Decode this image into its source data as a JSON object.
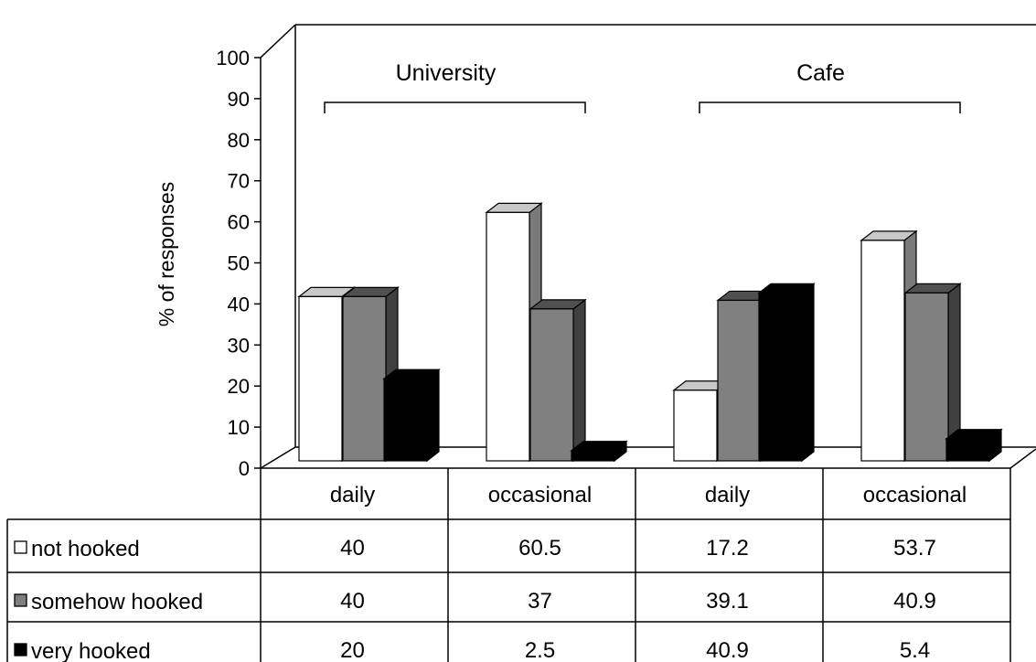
{
  "chart_data": {
    "type": "bar",
    "ylabel": "% of responses",
    "ylim": [
      0,
      100
    ],
    "yticks": [
      "0",
      "10",
      "20",
      "30",
      "40",
      "50",
      "60",
      "70",
      "80",
      "90",
      "100"
    ],
    "groups": [
      {
        "label": "University",
        "span": [
          0,
          1
        ]
      },
      {
        "label": "Cafe",
        "span": [
          2,
          3
        ]
      }
    ],
    "categories": [
      "daily",
      "occasional",
      "daily",
      "occasional"
    ],
    "series": [
      {
        "name": "not hooked",
        "color": "#ffffff",
        "values": [
          40,
          60.5,
          17.2,
          53.7
        ],
        "labels": [
          "40",
          "60.5",
          "17.2",
          "53.7"
        ]
      },
      {
        "name": "somehow hooked",
        "color": "#808080",
        "values": [
          40,
          37,
          39.1,
          40.9
        ],
        "labels": [
          "40",
          "37",
          "39.1",
          "40.9"
        ]
      },
      {
        "name": "very hooked",
        "color": "#000000",
        "values": [
          20,
          2.5,
          40.9,
          5.4
        ],
        "labels": [
          "20",
          "2.5",
          "40.9",
          "5.4"
        ]
      }
    ],
    "grid": false,
    "legend": "data-table"
  }
}
